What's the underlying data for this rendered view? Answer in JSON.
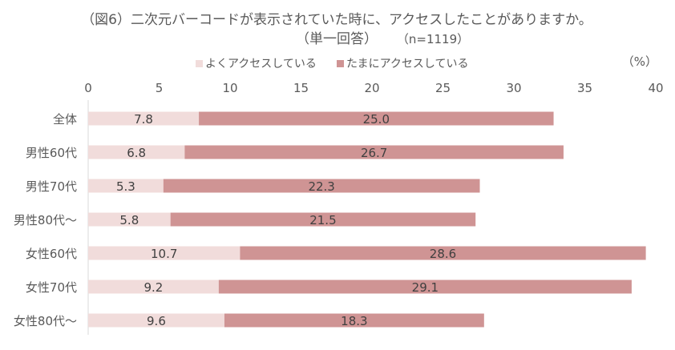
{
  "chart_data": {
    "type": "bar",
    "orientation": "horizontal",
    "stacked": true,
    "title_line1": "（図6）二次元バーコードが表示されていた時に、アクセスしたことがありますか。",
    "title_line2": "（単一回答）",
    "sample_size": "（n=1119）",
    "unit_label": "（%）",
    "categories": [
      "全体",
      "男性60代",
      "男性70代",
      "男性80代～",
      "女性60代",
      "女性70代",
      "女性80代～"
    ],
    "series": [
      {
        "name": "よくアクセスしている",
        "values": [
          7.8,
          6.8,
          5.3,
          5.8,
          10.7,
          9.2,
          9.6
        ],
        "color": "#F1DCDB"
      },
      {
        "name": "たまにアクセスしている",
        "values": [
          25.0,
          26.7,
          22.3,
          21.5,
          28.6,
          29.1,
          18.3
        ],
        "color": "#CF9494"
      }
    ],
    "xlim": [
      0,
      40
    ],
    "xticks": [
      "0",
      "5",
      "10",
      "15",
      "20",
      "25",
      "30",
      "35",
      "40"
    ],
    "legend_position": "top",
    "grid": false
  }
}
